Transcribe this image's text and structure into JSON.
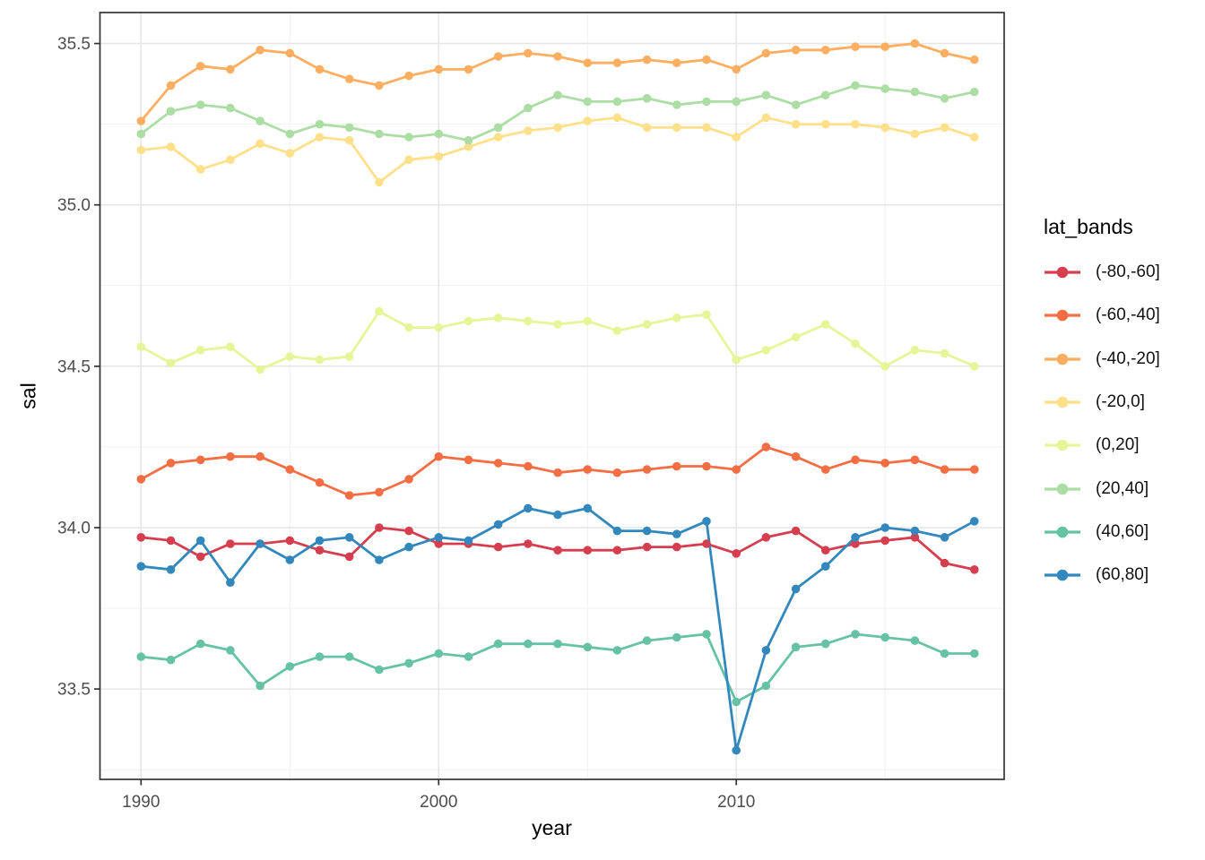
{
  "chart_data": {
    "type": "line",
    "title": "",
    "xlabel": "year",
    "ylabel": "sal",
    "legend_title": "lat_bands",
    "legend_position": "right",
    "grid": true,
    "panel_background": "#ffffff",
    "panel_border_color": "#343434",
    "grid_major_color": "#e6e6e6",
    "grid_minor_color": "#f1f1f1",
    "tick_label_color": "#4d4d4d",
    "xlim": [
      1988.62,
      2019.0
    ],
    "ylim": [
      33.22,
      35.596
    ],
    "x_major_ticks": [
      {
        "value": 1990,
        "label": "1990"
      },
      {
        "value": 2000,
        "label": "2000"
      },
      {
        "value": 2010,
        "label": "2010"
      }
    ],
    "x_minor_ticks": [
      1995,
      2005,
      2015
    ],
    "y_major_ticks": [
      {
        "value": 33.5,
        "label": "33.5"
      },
      {
        "value": 34.0,
        "label": "34.0"
      },
      {
        "value": 34.5,
        "label": "34.5"
      },
      {
        "value": 35.0,
        "label": "35.0"
      },
      {
        "value": 35.5,
        "label": "35.5"
      }
    ],
    "y_minor_ticks": [
      33.25,
      33.75,
      34.25,
      34.75,
      35.25
    ],
    "x": [
      1990,
      1991,
      1992,
      1993,
      1994,
      1995,
      1996,
      1997,
      1998,
      1999,
      2000,
      2001,
      2002,
      2003,
      2004,
      2005,
      2006,
      2007,
      2008,
      2009,
      2010,
      2011,
      2012,
      2013,
      2014,
      2015,
      2016,
      2017,
      2018
    ],
    "series": [
      {
        "name": "(-80,-60]",
        "color": "#d53e4f",
        "values": [
          33.97,
          33.96,
          33.91,
          33.95,
          33.95,
          33.96,
          33.93,
          33.91,
          34.0,
          33.99,
          33.95,
          33.95,
          33.94,
          33.95,
          33.93,
          33.93,
          33.93,
          33.94,
          33.94,
          33.95,
          33.92,
          33.97,
          33.99,
          33.93,
          33.95,
          33.96,
          33.97,
          33.89,
          33.87
        ]
      },
      {
        "name": "(-60,-40]",
        "color": "#f46d43",
        "values": [
          34.15,
          34.2,
          34.21,
          34.22,
          34.22,
          34.18,
          34.14,
          34.1,
          34.11,
          34.15,
          34.22,
          34.21,
          34.2,
          34.19,
          34.17,
          34.18,
          34.17,
          34.18,
          34.19,
          34.19,
          34.18,
          34.25,
          34.22,
          34.18,
          34.21,
          34.2,
          34.21,
          34.18,
          34.18
        ]
      },
      {
        "name": "(-40,-20]",
        "color": "#fdae61",
        "values": [
          35.26,
          35.37,
          35.43,
          35.42,
          35.48,
          35.47,
          35.42,
          35.39,
          35.37,
          35.4,
          35.42,
          35.42,
          35.46,
          35.47,
          35.46,
          35.44,
          35.44,
          35.45,
          35.44,
          35.45,
          35.42,
          35.47,
          35.48,
          35.48,
          35.49,
          35.49,
          35.5,
          35.47,
          35.45
        ]
      },
      {
        "name": "(-20,0]",
        "color": "#fee08b",
        "values": [
          35.17,
          35.18,
          35.11,
          35.14,
          35.19,
          35.16,
          35.21,
          35.2,
          35.07,
          35.14,
          35.15,
          35.18,
          35.21,
          35.23,
          35.24,
          35.26,
          35.27,
          35.24,
          35.24,
          35.24,
          35.21,
          35.27,
          35.25,
          35.25,
          35.25,
          35.24,
          35.22,
          35.24,
          35.21
        ]
      },
      {
        "name": "(0,20]",
        "color": "#e6f598",
        "values": [
          34.56,
          34.51,
          34.55,
          34.56,
          34.49,
          34.53,
          34.52,
          34.53,
          34.67,
          34.62,
          34.62,
          34.64,
          34.65,
          34.64,
          34.63,
          34.64,
          34.61,
          34.63,
          34.65,
          34.66,
          34.52,
          34.55,
          34.59,
          34.63,
          34.57,
          34.5,
          34.55,
          34.54,
          34.5
        ]
      },
      {
        "name": "(20,40]",
        "color": "#abdda4",
        "values": [
          35.22,
          35.29,
          35.31,
          35.3,
          35.26,
          35.22,
          35.25,
          35.24,
          35.22,
          35.21,
          35.22,
          35.2,
          35.24,
          35.3,
          35.34,
          35.32,
          35.32,
          35.33,
          35.31,
          35.32,
          35.32,
          35.34,
          35.31,
          35.34,
          35.37,
          35.36,
          35.35,
          35.33,
          35.35
        ]
      },
      {
        "name": "(40,60]",
        "color": "#66c2a5",
        "values": [
          33.6,
          33.59,
          33.64,
          33.62,
          33.51,
          33.57,
          33.6,
          33.6,
          33.56,
          33.58,
          33.61,
          33.6,
          33.64,
          33.64,
          33.64,
          33.63,
          33.62,
          33.65,
          33.66,
          33.67,
          33.46,
          33.51,
          33.63,
          33.64,
          33.67,
          33.66,
          33.65,
          33.61,
          33.61
        ]
      },
      {
        "name": "(60,80]",
        "color": "#3288bd",
        "values": [
          33.88,
          33.87,
          33.96,
          33.83,
          33.95,
          33.9,
          33.96,
          33.97,
          33.9,
          33.94,
          33.97,
          33.96,
          34.01,
          34.06,
          34.04,
          34.06,
          33.99,
          33.99,
          33.98,
          34.02,
          33.31,
          33.62,
          33.81,
          33.88,
          33.97,
          34.0,
          33.99,
          33.97,
          34.02
        ]
      }
    ]
  },
  "legend": {
    "title": "lat_bands",
    "items": [
      {
        "label": "(-80,-60]",
        "color": "#d53e4f"
      },
      {
        "label": "(-60,-40]",
        "color": "#f46d43"
      },
      {
        "label": "(-40,-20]",
        "color": "#fdae61"
      },
      {
        "label": "(-20,0]",
        "color": "#fee08b"
      },
      {
        "label": "(0,20]",
        "color": "#e6f598"
      },
      {
        "label": "(20,40]",
        "color": "#abdda4"
      },
      {
        "label": "(40,60]",
        "color": "#66c2a5"
      },
      {
        "label": "(60,80]",
        "color": "#3288bd"
      }
    ]
  }
}
